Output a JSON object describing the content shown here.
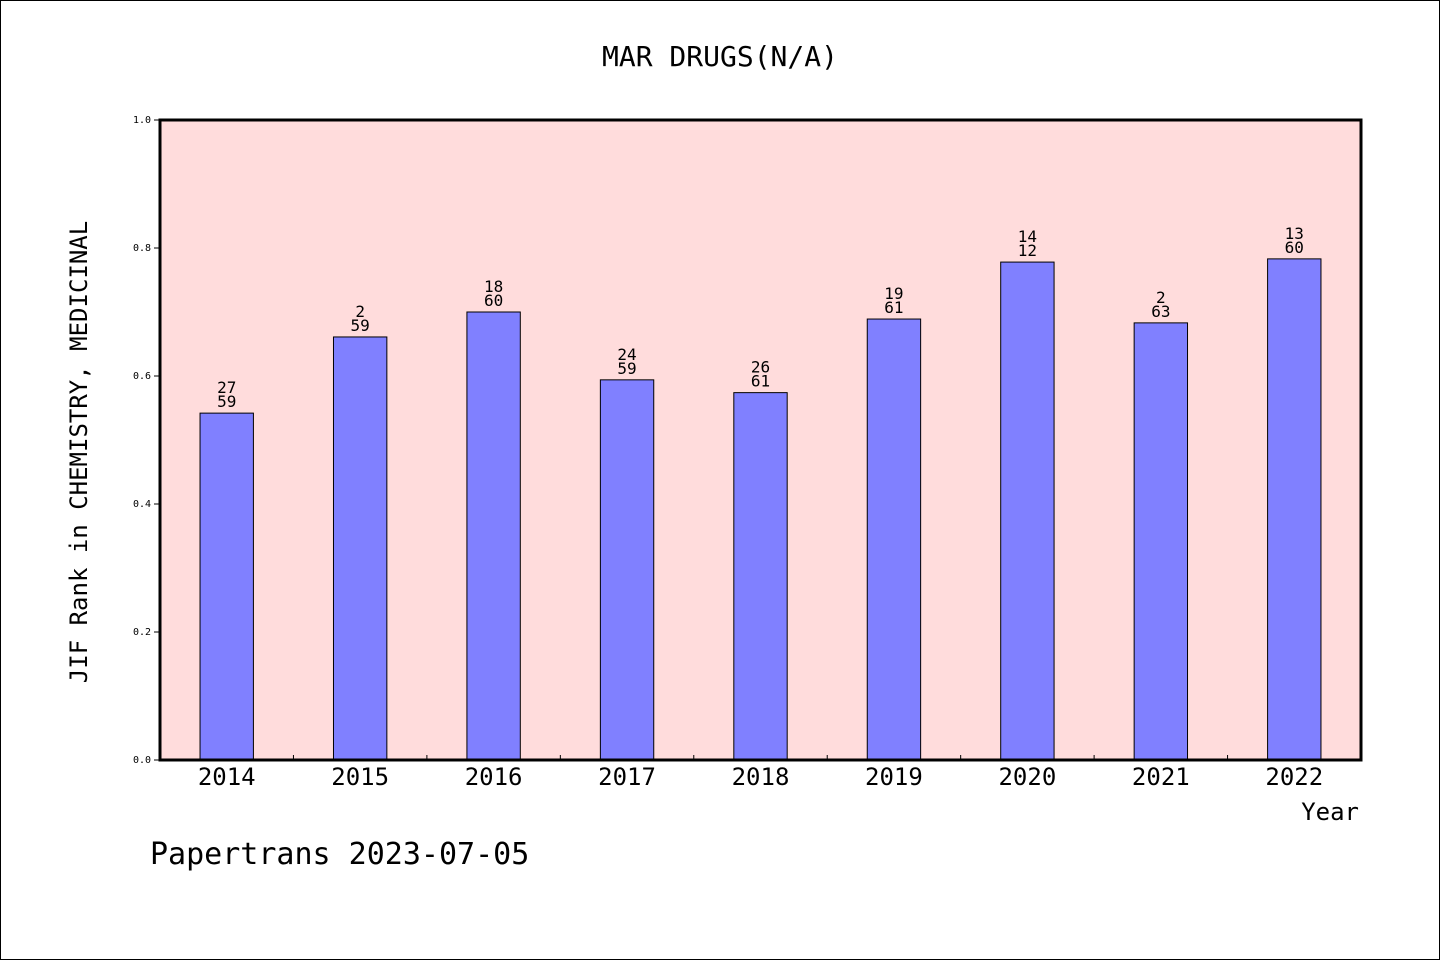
{
  "chart_data": {
    "type": "bar",
    "title": "MAR DRUGS(N/A)",
    "xlabel": "Year",
    "ylabel": "JIF Rank in CHEMISTRY, MEDICINAL",
    "ylim": [
      0.0,
      1.0
    ],
    "yticks": [
      "0.0",
      "0.2",
      "0.4",
      "0.6",
      "0.8",
      "1.0"
    ],
    "grid": false,
    "categories": [
      "2014",
      "2015",
      "2016",
      "2017",
      "2018",
      "2019",
      "2020",
      "2021",
      "2022"
    ],
    "values": [
      0.542,
      0.661,
      0.7,
      0.594,
      0.574,
      0.689,
      0.778,
      0.683,
      0.783
    ],
    "bar_labels": [
      [
        "27",
        "59"
      ],
      [
        "2",
        "59"
      ],
      [
        "18",
        "60"
      ],
      [
        "24",
        "59"
      ],
      [
        "26",
        "61"
      ],
      [
        "19",
        "61"
      ],
      [
        "14",
        "12"
      ],
      [
        "2",
        "63"
      ],
      [
        "13",
        "60"
      ]
    ],
    "colors": {
      "bar": "#8080ff",
      "plot_background": "#ffdcdc",
      "axis": "#000000"
    }
  },
  "footer": "Papertrans 2023-07-05"
}
